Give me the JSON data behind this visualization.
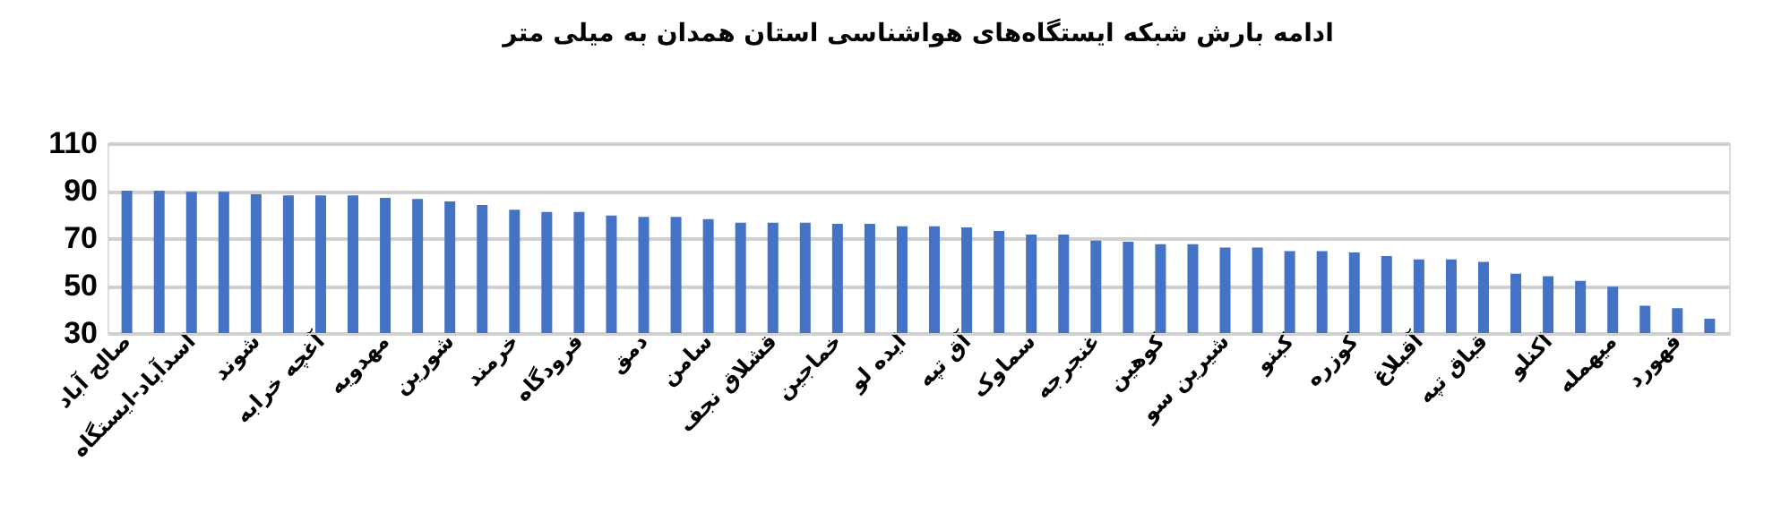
{
  "chart_data": {
    "type": "bar",
    "title": "ادامه بارش شبکه ایستگاه‌های هواشناسی استان همدان به میلی متر",
    "categories": [
      "صالح آباد",
      null,
      "اسدآباد-ایستگاه",
      null,
      "شوند",
      null,
      "آغچه خرابه",
      null,
      "مهدویه",
      null,
      "شورین",
      null,
      "خرمند",
      null,
      "فرودگاه",
      null,
      "دمق",
      null,
      "سامن",
      null,
      "قشلاق نجف",
      null,
      "خماجین",
      null,
      "ایده لو",
      null,
      "آق تپه",
      null,
      "سماوک",
      null,
      "غنجرجه",
      null,
      "کوهین",
      null,
      "شیرین سو",
      null,
      "کبنو",
      null,
      "کوزره",
      null,
      "آقبلاغ",
      null,
      "قباق تپه",
      null,
      "اکنلو",
      null,
      "میهمله",
      null,
      "فهورد",
      null
    ],
    "values": [
      90,
      90,
      89.5,
      89.5,
      88.5,
      88,
      88,
      88,
      87,
      86.5,
      85.5,
      84,
      82,
      81,
      81,
      79.5,
      79,
      79,
      78,
      76.5,
      76.5,
      76.5,
      76,
      76,
      75,
      75,
      74.5,
      73,
      71.5,
      71.5,
      69,
      68.5,
      67.5,
      67.5,
      66,
      66,
      64.5,
      64.5,
      64,
      62.5,
      61,
      61,
      60,
      55,
      54,
      52,
      49.5,
      41.5,
      40.5,
      36
    ],
    "color": "#4472c4",
    "ylim": [
      30,
      110
    ],
    "yticks": [
      30,
      50,
      70,
      90,
      110
    ],
    "grid": "y"
  }
}
